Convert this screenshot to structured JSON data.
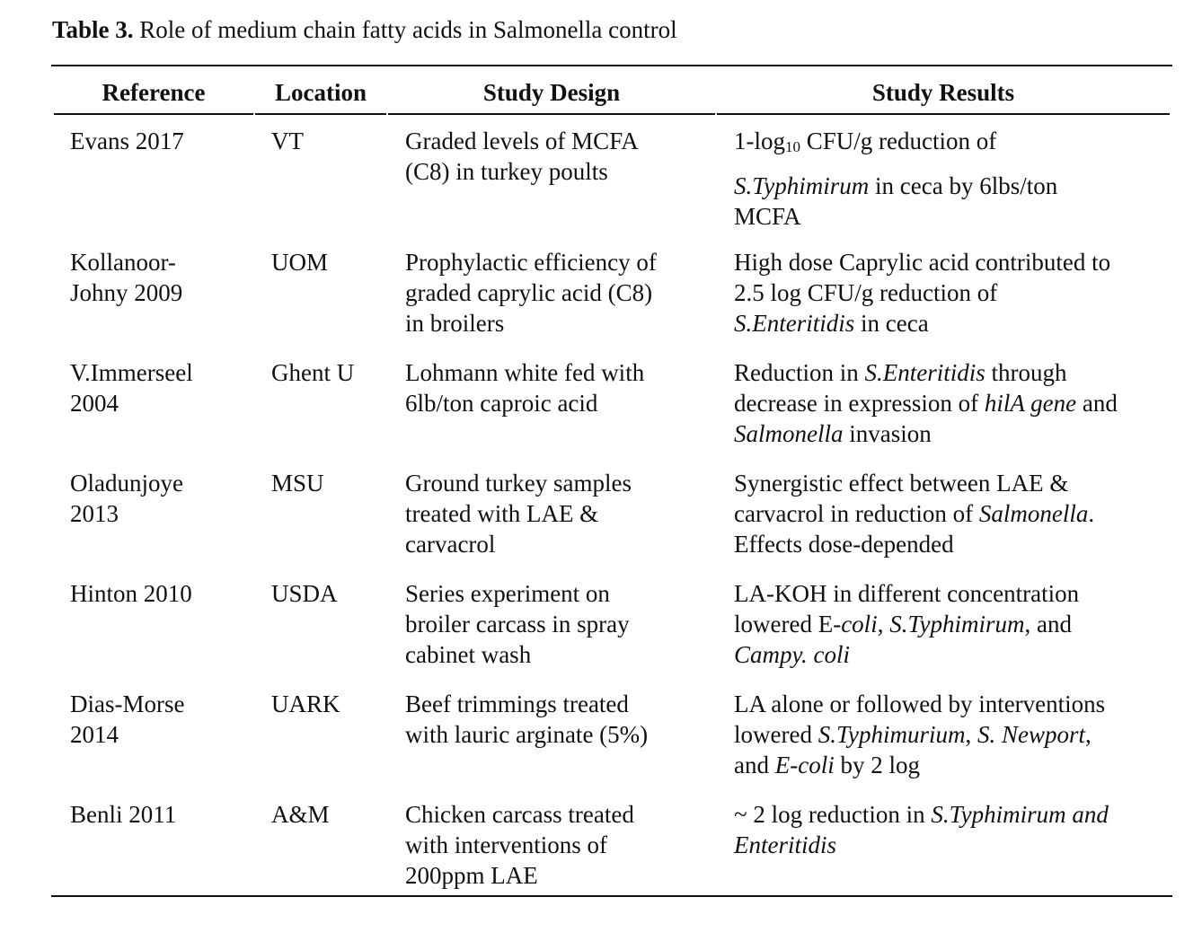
{
  "caption": {
    "label": "Table 3.",
    "text": " Role of medium chain fatty acids in Salmonella control"
  },
  "headers": {
    "reference": "Reference",
    "location": "Location",
    "design": "Study Design",
    "results": "Study Results"
  },
  "rows": [
    {
      "reference": [
        "Evans 2017"
      ],
      "location": "VT",
      "design": [
        "Graded levels of MCFA",
        "(C8) in turkey poults"
      ],
      "results": [
        [
          {
            "t": "1-log"
          },
          {
            "t": "10",
            "sub": true
          },
          {
            "t": " CFU/g reduction of"
          }
        ],
        [
          {
            "t": "S.Typhimirum",
            "i": true
          },
          {
            "t": " in ceca by 6lbs/ton"
          }
        ],
        [
          {
            "t": "MCFA"
          }
        ]
      ]
    },
    {
      "reference": [
        "Kollanoor-",
        "Johny 2009"
      ],
      "location": "UOM",
      "design": [
        "Prophylactic efficiency of",
        "graded caprylic acid (C8)",
        "in broilers"
      ],
      "results": [
        [
          {
            "t": "High dose Caprylic acid contributed to"
          }
        ],
        [
          {
            "t": "2.5 log CFU/g reduction of"
          }
        ],
        [
          {
            "t": "S.Enteritidis",
            "i": true
          },
          {
            "t": " in ceca"
          }
        ]
      ]
    },
    {
      "reference": [
        "V.Immerseel",
        "2004"
      ],
      "location": "Ghent U",
      "design": [
        "Lohmann white fed with",
        "6lb/ton caproic acid"
      ],
      "results": [
        [
          {
            "t": "Reduction in "
          },
          {
            "t": "S.Enteritidis",
            "i": true
          },
          {
            "t": " through"
          }
        ],
        [
          {
            "t": "decrease in expression of "
          },
          {
            "t": "hilA gene",
            "i": true
          },
          {
            "t": " and"
          }
        ],
        [
          {
            "t": "Salmonella",
            "i": true
          },
          {
            "t": " invasion"
          }
        ]
      ]
    },
    {
      "reference": [
        "Oladunjoye",
        "2013"
      ],
      "location": "MSU",
      "design": [
        "Ground turkey samples",
        "treated with LAE &",
        "carvacrol"
      ],
      "results": [
        [
          {
            "t": "Synergistic effect between LAE &"
          }
        ],
        [
          {
            "t": "carvacrol in reduction of "
          },
          {
            "t": "Salmonella",
            "i": true
          },
          {
            "t": "."
          }
        ],
        [
          {
            "t": "Effects dose-depended"
          }
        ]
      ]
    },
    {
      "reference": [
        "Hinton 2010"
      ],
      "location": "USDA",
      "design": [
        "Series experiment on",
        "broiler carcass in spray",
        "cabinet wash"
      ],
      "results": [
        [
          {
            "t": "LA-KOH in different concentration"
          }
        ],
        [
          {
            "t": "lowered E-"
          },
          {
            "t": "coli",
            "i": true
          },
          {
            "t": ", "
          },
          {
            "t": "S.Typhimirum",
            "i": true
          },
          {
            "t": ", and"
          }
        ],
        [
          {
            "t": "Campy. coli",
            "i": true
          }
        ]
      ]
    },
    {
      "reference": [
        "Dias-Morse",
        "2014"
      ],
      "location": "UARK",
      "design": [
        "Beef trimmings treated",
        "with lauric arginate (5%)"
      ],
      "results": [
        [
          {
            "t": "LA alone or followed by interventions"
          }
        ],
        [
          {
            "t": "lowered "
          },
          {
            "t": "S.Typhimurium",
            "i": true
          },
          {
            "t": ", "
          },
          {
            "t": "S. Newport",
            "i": true
          },
          {
            "t": ","
          }
        ],
        [
          {
            "t": "and "
          },
          {
            "t": "E-coli",
            "i": true
          },
          {
            "t": " by 2 log"
          }
        ]
      ]
    },
    {
      "reference": [
        "Benli 2011"
      ],
      "location": "A&M",
      "design": [
        "Chicken carcass treated",
        "with interventions of",
        "200ppm LAE"
      ],
      "results": [
        [
          {
            "t": "~ 2 log reduction in "
          },
          {
            "t": "S.Typhimirum and",
            "i": true
          }
        ],
        [
          {
            "t": "Enteritidis",
            "i": true
          }
        ]
      ]
    }
  ]
}
